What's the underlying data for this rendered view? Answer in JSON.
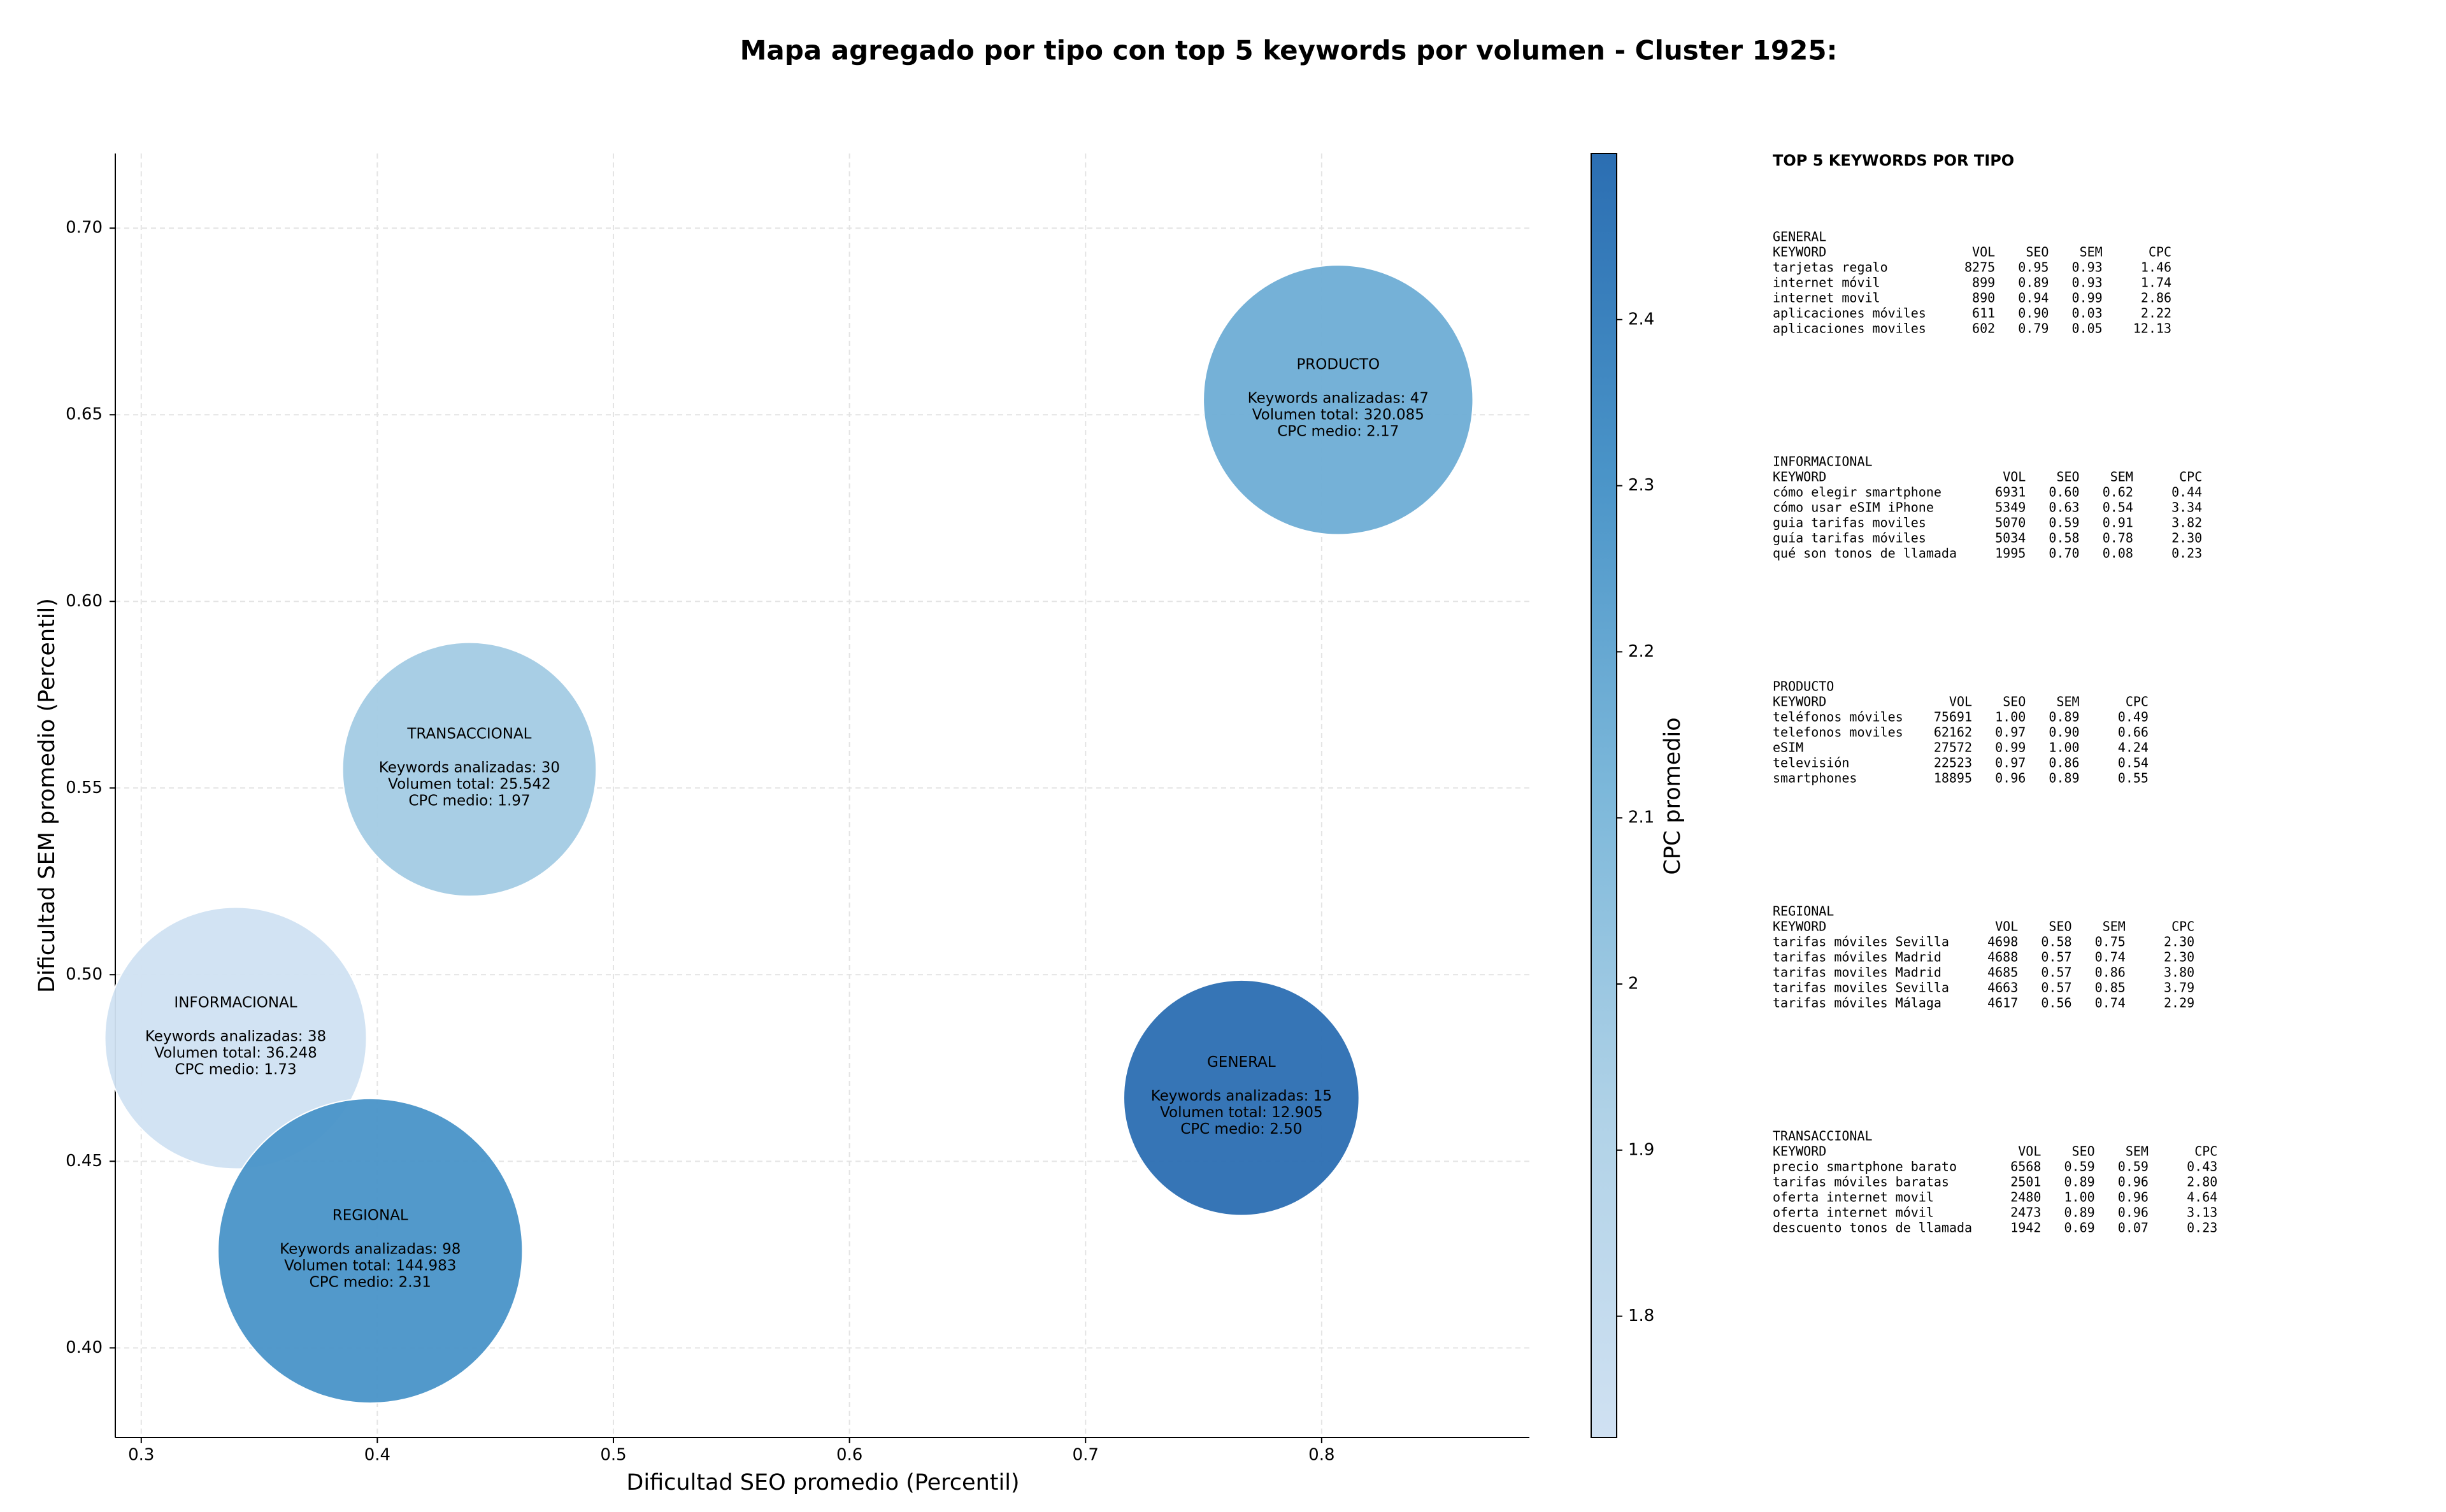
{
  "chart_data": {
    "type": "bubble",
    "title": "Mapa agregado por tipo con top 5 keywords por volumen - Cluster 1925:",
    "x_label": "Dificultad SEO promedio (Percentil)",
    "y_label": "Dificultad SEM promedio (Percentil)",
    "categories": [
      "GENERAL",
      "INFORMACIONAL",
      "PRODUCTO",
      "REGIONAL",
      "TRANSACCIONAL"
    ],
    "series": [
      {
        "x": [
          0.766,
          0.34,
          0.807,
          0.397,
          0.439
        ],
        "values": [
          0.467,
          0.483,
          0.654,
          0.426,
          0.555
        ],
        "sizes": [
          15,
          38,
          47,
          98,
          30
        ],
        "cpc": [
          2.5,
          1.73,
          2.17,
          2.31,
          1.97
        ],
        "labels": [
          [
            "Keywords analizadas: 15",
            "Volumen total: 12.905",
            "CPC medio: 2.50"
          ],
          [
            "Keywords analizadas: 38",
            "Volumen total: 36.248",
            "CPC medio: 1.73"
          ],
          [
            "Keywords analizadas: 47",
            "Volumen total: 320.085",
            "CPC medio: 2.17"
          ],
          [
            "Keywords analizadas: 98",
            "Volumen total: 144.983",
            "CPC medio: 2.31"
          ],
          [
            "Keywords analizadas: 30",
            "Volumen total: 25.542",
            "CPC medio: 1.97"
          ]
        ]
      }
    ],
    "xlim": [
      0.289,
      0.888
    ],
    "xticks": [
      0.3,
      0.4,
      0.5,
      0.6,
      0.7,
      0.8
    ],
    "ylim": [
      0.376,
      0.72
    ],
    "yticks": [
      {
        "value": 0.4,
        "label": "0.40"
      },
      0.45,
      {
        "value": 0.5,
        "label": "0.50"
      },
      0.55,
      {
        "value": 0.6,
        "label": "0.60"
      },
      0.65,
      {
        "value": 0.7,
        "label": "0.70"
      }
    ],
    "grid": true,
    "colorbar": {
      "label": "CPC promedio",
      "lim": [
        1.727,
        2.5
      ],
      "ticks": [
        1.8,
        1.9,
        2.0,
        2.1,
        2.2,
        2.3,
        2.4
      ],
      "colormap": [
        "#d0e1f2",
        "#b0d2e7",
        "#7db8da",
        "#4a94c8",
        "#2b6eb2"
      ]
    }
  },
  "side_panel": {
    "title": "TOP 5 KEYWORDS POR TIPO",
    "columns": [
      "KEYWORD",
      "VOL",
      "SEO",
      "SEM",
      "CPC"
    ],
    "groups": [
      {
        "name": "GENERAL",
        "rows": [
          [
            "tarjetas regalo",
            "8275",
            "0.95",
            "0.93",
            "1.46"
          ],
          [
            "internet móvil",
            "899",
            "0.89",
            "0.93",
            "1.74"
          ],
          [
            "internet movil",
            "890",
            "0.94",
            "0.99",
            "2.86"
          ],
          [
            "aplicaciones móviles",
            "611",
            "0.90",
            "0.03",
            "2.22"
          ],
          [
            "aplicaciones moviles",
            "602",
            "0.79",
            "0.05",
            "12.13"
          ]
        ]
      },
      {
        "name": "INFORMACIONAL",
        "rows": [
          [
            "cómo elegir smartphone",
            "6931",
            "0.60",
            "0.62",
            "0.44"
          ],
          [
            "cómo usar eSIM iPhone",
            "5349",
            "0.63",
            "0.54",
            "3.34"
          ],
          [
            "guia tarifas moviles",
            "5070",
            "0.59",
            "0.91",
            "3.82"
          ],
          [
            "guía tarifas móviles",
            "5034",
            "0.58",
            "0.78",
            "2.30"
          ],
          [
            "qué son tonos de llamada",
            "1995",
            "0.70",
            "0.08",
            "0.23"
          ]
        ]
      },
      {
        "name": "PRODUCTO",
        "rows": [
          [
            "teléfonos móviles",
            "75691",
            "1.00",
            "0.89",
            "0.49"
          ],
          [
            "telefonos moviles",
            "62162",
            "0.97",
            "0.90",
            "0.66"
          ],
          [
            "eSIM",
            "27572",
            "0.99",
            "1.00",
            "4.24"
          ],
          [
            "televisión",
            "22523",
            "0.97",
            "0.86",
            "0.54"
          ],
          [
            "smartphones",
            "18895",
            "0.96",
            "0.89",
            "0.55"
          ]
        ]
      },
      {
        "name": "REGIONAL",
        "rows": [
          [
            "tarifas móviles Sevilla",
            "4698",
            "0.58",
            "0.75",
            "2.30"
          ],
          [
            "tarifas móviles Madrid",
            "4688",
            "0.57",
            "0.74",
            "2.30"
          ],
          [
            "tarifas moviles Madrid",
            "4685",
            "0.57",
            "0.86",
            "3.80"
          ],
          [
            "tarifas moviles Sevilla",
            "4663",
            "0.57",
            "0.85",
            "3.79"
          ],
          [
            "tarifas móviles Málaga",
            "4617",
            "0.56",
            "0.74",
            "2.29"
          ]
        ]
      },
      {
        "name": "TRANSACCIONAL",
        "rows": [
          [
            "precio smartphone barato",
            "6568",
            "0.59",
            "0.59",
            "0.43"
          ],
          [
            "tarifas móviles baratas",
            "2501",
            "0.89",
            "0.96",
            "2.80"
          ],
          [
            "oferta internet movil",
            "2480",
            "1.00",
            "0.96",
            "4.64"
          ],
          [
            "oferta internet móvil",
            "2473",
            "0.89",
            "0.96",
            "3.13"
          ],
          [
            "descuento tonos de llamada",
            "1942",
            "0.69",
            "0.07",
            "0.23"
          ]
        ]
      }
    ]
  }
}
